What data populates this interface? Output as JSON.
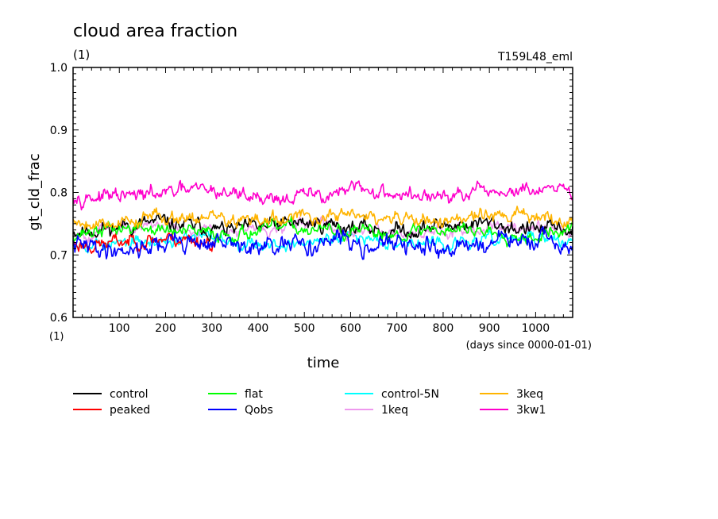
{
  "chart_data": {
    "type": "line",
    "title": "cloud area fraction",
    "units_left": "(1)",
    "run_label": "T159L48_eml",
    "xlabel": "time",
    "xunit": "(days since 0000-01-01)",
    "x_corner_unit": "(1)",
    "ylabel": "gt_cld_frac",
    "xlim": [
      0,
      1080
    ],
    "ylim": [
      0.6,
      1.0
    ],
    "xticks": [
      "100",
      "200",
      "300",
      "400",
      "500",
      "600",
      "700",
      "800",
      "900",
      "1000"
    ],
    "yticks": [
      "0.6",
      "0.7",
      "0.8",
      "0.9",
      "1.0"
    ],
    "grid": false,
    "legend_position": "bottom",
    "series": [
      {
        "name": "control",
        "color": "#000000",
        "mean": 0.745,
        "amp": 0.015,
        "range": [
          0,
          1080
        ],
        "seed": 11
      },
      {
        "name": "peaked",
        "color": "#ff0000",
        "mean": 0.722,
        "amp": 0.014,
        "range": [
          0,
          310
        ],
        "seed": 23
      },
      {
        "name": "flat",
        "color": "#00ff00",
        "mean": 0.738,
        "amp": 0.013,
        "range": [
          0,
          1080
        ],
        "seed": 37
      },
      {
        "name": "Qobs",
        "color": "#0000ff",
        "mean": 0.716,
        "amp": 0.018,
        "range": [
          0,
          1080
        ],
        "seed": 41
      },
      {
        "name": "control-5N",
        "color": "#00ffff",
        "mean": 0.722,
        "amp": 0.012,
        "range": [
          0,
          1080
        ],
        "seed": 53
      },
      {
        "name": "1keq",
        "color": "#ee99ee",
        "mean": 0.742,
        "amp": 0.012,
        "range": [
          0,
          1080
        ],
        "seed": 67
      },
      {
        "name": "3keq",
        "color": "#ffb400",
        "mean": 0.758,
        "amp": 0.014,
        "range": [
          0,
          1080
        ],
        "seed": 79
      },
      {
        "name": "3kw1",
        "color": "#ff00cc",
        "mean": 0.797,
        "amp": 0.014,
        "range": [
          0,
          1080
        ],
        "seed": 97
      }
    ]
  }
}
